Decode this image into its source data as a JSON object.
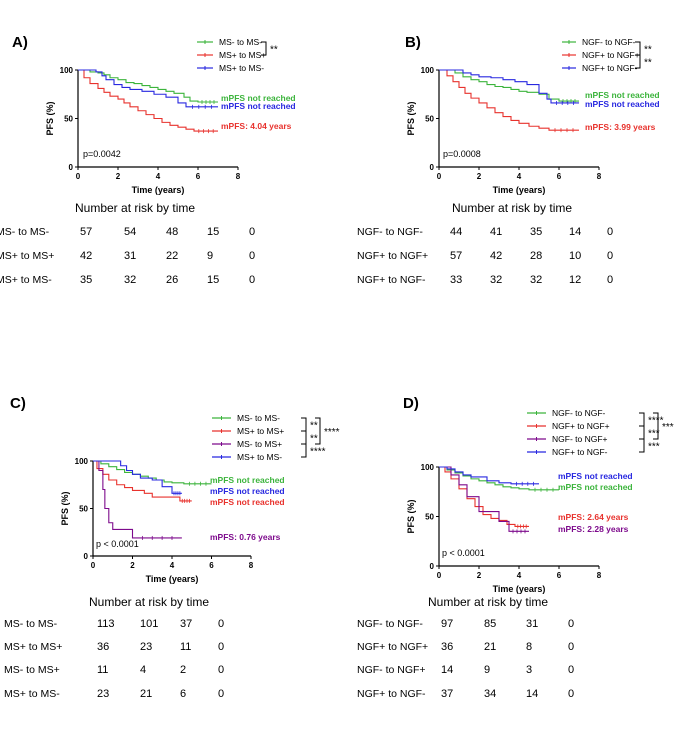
{
  "colors": {
    "green": "#3cb43c",
    "red": "#e8322d",
    "blue": "#2828e0",
    "purple": "#7d0a8c",
    "black": "#000000"
  },
  "chart_data": [
    {
      "id": "A",
      "type": "line",
      "title": "A)",
      "xlabel": "Time (years)",
      "ylabel": "PFS  (%)",
      "xlim": [
        0,
        8
      ],
      "ylim": [
        0,
        100
      ],
      "xticks": [
        0,
        2,
        4,
        6,
        8
      ],
      "yticks": [
        0,
        50,
        100
      ],
      "pvalue": "p=0.0042",
      "legend": [
        {
          "label": "MS- to MS-",
          "color": "green"
        },
        {
          "label": "MS+ to MS+",
          "color": "red"
        },
        {
          "label": "MS+ to MS-",
          "color": "blue"
        }
      ],
      "brackets": [
        {
          "from": 0,
          "to": 1,
          "label": "**"
        }
      ],
      "series": [
        {
          "name": "MS- to MS-",
          "color": "green",
          "x": [
            0,
            0.6,
            1.0,
            1.3,
            1.6,
            2.0,
            2.4,
            2.8,
            3.2,
            3.6,
            4.0,
            4.4,
            4.8,
            5.3,
            5.6,
            6.0,
            7.0
          ],
          "y": [
            100,
            98,
            97,
            95,
            92,
            90,
            87,
            86,
            84,
            82,
            80,
            78,
            76,
            72,
            68,
            67,
            67
          ]
        },
        {
          "name": "MS+ to MS+",
          "color": "red",
          "x": [
            0,
            0.3,
            0.6,
            1.0,
            1.3,
            1.6,
            2.0,
            2.3,
            2.6,
            3.0,
            3.4,
            3.8,
            4.2,
            4.6,
            5.0,
            5.4,
            5.8,
            7.0
          ],
          "y": [
            100,
            92,
            86,
            81,
            77,
            73,
            70,
            66,
            62,
            58,
            54,
            50,
            46,
            43,
            41,
            39,
            37,
            37
          ]
        },
        {
          "name": "MS+ to MS-",
          "color": "blue",
          "x": [
            0,
            0.9,
            1.2,
            1.4,
            1.8,
            2.2,
            2.6,
            3.2,
            3.8,
            4.4,
            5.0,
            5.4,
            7.0
          ],
          "y": [
            100,
            98,
            94,
            90,
            85,
            82,
            80,
            78,
            75,
            72,
            66,
            62,
            62
          ]
        }
      ],
      "annotations": [
        {
          "text": "mPFS not reached",
          "color": "green"
        },
        {
          "text": "mPFS not reached",
          "color": "blue"
        },
        {
          "text": "mPFS: 4.04 years",
          "color": "red"
        }
      ],
      "risk": {
        "title": "Number at risk by time",
        "rows": [
          {
            "label": "MS- to MS-",
            "values": [
              "57",
              "54",
              "48",
              "15",
              "0"
            ]
          },
          {
            "label": "MS+ to MS+",
            "values": [
              "42",
              "31",
              "22",
              "9",
              "0"
            ]
          },
          {
            "label": "MS+ to MS-",
            "values": [
              "35",
              "32",
              "26",
              "15",
              "0"
            ]
          }
        ]
      }
    },
    {
      "id": "B",
      "type": "line",
      "title": "B)",
      "xlabel": "Time (years)",
      "ylabel": "PFS  (%)",
      "xlim": [
        0,
        8
      ],
      "ylim": [
        0,
        100
      ],
      "xticks": [
        0,
        2,
        4,
        6,
        8
      ],
      "yticks": [
        0,
        50,
        100
      ],
      "pvalue": "p=0.0008",
      "legend": [
        {
          "label": "NGF- to NGF-",
          "color": "green"
        },
        {
          "label": "NGF+ to NGF+",
          "color": "red"
        },
        {
          "label": "NGF+ to NGF-",
          "color": "blue"
        }
      ],
      "brackets": [
        {
          "from": 0,
          "to": 1,
          "label": "**"
        },
        {
          "from": 1,
          "to": 2,
          "label": "**"
        }
      ],
      "series": [
        {
          "name": "NGF- to NGF-",
          "color": "green",
          "x": [
            0,
            0.8,
            1.2,
            1.6,
            2.0,
            2.4,
            2.8,
            3.2,
            3.6,
            4.0,
            4.4,
            5.0,
            5.5,
            6.0,
            7.0
          ],
          "y": [
            100,
            97,
            93,
            90,
            88,
            85,
            83,
            82,
            80,
            78,
            77,
            75,
            70,
            68,
            68
          ]
        },
        {
          "name": "NGF+ to NGF+",
          "color": "red",
          "x": [
            0,
            0.4,
            0.7,
            1.0,
            1.3,
            1.6,
            2.0,
            2.4,
            2.8,
            3.2,
            3.6,
            4.0,
            4.5,
            5.0,
            5.5,
            7.0
          ],
          "y": [
            100,
            94,
            88,
            82,
            76,
            71,
            66,
            61,
            56,
            52,
            48,
            45,
            42,
            40,
            38,
            38
          ]
        },
        {
          "name": "NGF+ to NGF-",
          "color": "blue",
          "x": [
            0,
            1.2,
            1.6,
            2.0,
            2.6,
            3.2,
            3.8,
            4.4,
            5.0,
            5.4,
            5.6,
            7.0
          ],
          "y": [
            100,
            97,
            95,
            93,
            92,
            90,
            88,
            85,
            76,
            70,
            66,
            66
          ]
        }
      ],
      "annotations": [
        {
          "text": "mPFS not reached",
          "color": "green"
        },
        {
          "text": "mPFS not reached",
          "color": "blue"
        },
        {
          "text": "mPFS: 3.99 years",
          "color": "red"
        }
      ],
      "risk": {
        "title": "Number at risk by time",
        "rows": [
          {
            "label": "NGF- to NGF-",
            "values": [
              "44",
              "41",
              "35",
              "14",
              "0"
            ]
          },
          {
            "label": "NGF+ to NGF+",
            "values": [
              "57",
              "42",
              "28",
              "10",
              "0"
            ]
          },
          {
            "label": "NGF+ to NGF-",
            "values": [
              "33",
              "32",
              "32",
              "12",
              "0"
            ]
          }
        ]
      }
    },
    {
      "id": "C",
      "type": "line",
      "title": "C)",
      "xlabel": "Time (years)",
      "ylabel": "PFS (%)",
      "xlim": [
        0,
        8
      ],
      "ylim": [
        0,
        100
      ],
      "xticks": [
        0,
        2,
        4,
        6,
        8
      ],
      "yticks": [
        0,
        50,
        100
      ],
      "pvalue": "p < 0.0001",
      "legend": [
        {
          "label": "MS- to MS-",
          "color": "green"
        },
        {
          "label": "MS+ to MS+",
          "color": "red"
        },
        {
          "label": "MS- to MS+",
          "color": "purple"
        },
        {
          "label": "MS+ to MS-",
          "color": "blue"
        }
      ],
      "brackets": [
        {
          "from": 0,
          "to": 1,
          "label": "**"
        },
        {
          "from": 1,
          "to": 2,
          "label": "**"
        },
        {
          "from": 0,
          "to": 2,
          "label": "****"
        },
        {
          "from": 2,
          "to": 3,
          "label": "****"
        }
      ],
      "series": [
        {
          "name": "MS- to MS-",
          "color": "green",
          "x": [
            0,
            0.4,
            0.8,
            1.2,
            1.6,
            2.0,
            2.4,
            2.8,
            3.2,
            3.6,
            4.0,
            4.6,
            6.0
          ],
          "y": [
            100,
            97,
            94,
            91,
            88,
            86,
            84,
            82,
            80,
            78,
            77,
            76,
            76
          ]
        },
        {
          "name": "MS+ to MS+",
          "color": "red",
          "x": [
            0,
            0.2,
            0.5,
            0.8,
            1.2,
            1.6,
            2.0,
            2.6,
            3.0,
            4.4,
            5.0
          ],
          "y": [
            100,
            92,
            86,
            80,
            75,
            72,
            69,
            66,
            62,
            58,
            58
          ]
        },
        {
          "name": "MS- to MS+",
          "color": "purple",
          "x": [
            0,
            0.3,
            0.5,
            0.6,
            0.8,
            1.0,
            2.0,
            4.5
          ],
          "y": [
            100,
            90,
            70,
            50,
            35,
            28,
            19,
            19
          ]
        },
        {
          "name": "MS+ to MS-",
          "color": "blue",
          "x": [
            0,
            1.4,
            1.7,
            2.0,
            2.4,
            3.0,
            3.5,
            4.0,
            4.5
          ],
          "y": [
            100,
            95,
            90,
            86,
            82,
            80,
            73,
            66,
            66
          ]
        }
      ],
      "annotations": [
        {
          "text": "mPFS not reached",
          "color": "green"
        },
        {
          "text": "mPFS not reached",
          "color": "blue"
        },
        {
          "text": "mPFS not reached",
          "color": "red"
        },
        {
          "text": "mPFS: 0.76 years",
          "color": "purple"
        }
      ],
      "risk": {
        "title": "Number at risk by time",
        "rows": [
          {
            "label": "MS- to MS-",
            "values": [
              "113",
              "101",
              "37",
              "0"
            ]
          },
          {
            "label": "MS+ to MS+",
            "values": [
              "36",
              "23",
              "11",
              "0"
            ]
          },
          {
            "label": "MS- to MS+",
            "values": [
              "11",
              "4",
              "2",
              "0"
            ]
          },
          {
            "label": "MS+ to MS-",
            "values": [
              "23",
              "21",
              "6",
              "0"
            ]
          }
        ]
      }
    },
    {
      "id": "D",
      "type": "line",
      "title": "D)",
      "xlabel": "Time (years)",
      "ylabel": "PFS (%)",
      "xlim": [
        0,
        8
      ],
      "ylim": [
        0,
        100
      ],
      "xticks": [
        0,
        2,
        4,
        6,
        8
      ],
      "yticks": [
        0,
        50,
        100
      ],
      "pvalue": "p < 0.0001",
      "legend": [
        {
          "label": "NGF- to NGF-",
          "color": "green"
        },
        {
          "label": "NGF+ to NGF+",
          "color": "red"
        },
        {
          "label": "NGF- to NGF+",
          "color": "purple"
        },
        {
          "label": "NGF+ to NGF-",
          "color": "blue"
        }
      ],
      "brackets": [
        {
          "from": 0,
          "to": 1,
          "label": "****"
        },
        {
          "from": 2,
          "to": 3,
          "label": "***"
        },
        {
          "from": 1,
          "to": 2,
          "label": "***"
        },
        {
          "from": 0,
          "to": 2,
          "label": "***"
        }
      ],
      "series": [
        {
          "name": "NGF- to NGF-",
          "color": "green",
          "x": [
            0,
            0.4,
            0.8,
            1.2,
            1.6,
            2.0,
            2.4,
            2.8,
            3.2,
            3.6,
            4.0,
            4.5,
            6.0
          ],
          "y": [
            100,
            97,
            94,
            91,
            88,
            86,
            84,
            82,
            80,
            79,
            78,
            77,
            77
          ]
        },
        {
          "name": "NGF+ to NGF+",
          "color": "red",
          "x": [
            0,
            0.3,
            0.6,
            1.0,
            1.4,
            1.8,
            2.2,
            2.6,
            3.0,
            3.4,
            3.8,
            4.5
          ],
          "y": [
            100,
            95,
            88,
            78,
            68,
            60,
            52,
            48,
            46,
            42,
            40,
            40
          ]
        },
        {
          "name": "NGF- to NGF+",
          "color": "purple",
          "x": [
            0,
            0.6,
            1.0,
            1.4,
            2.0,
            3.0,
            3.5,
            4.5
          ],
          "y": [
            100,
            92,
            82,
            70,
            55,
            45,
            35,
            35
          ]
        },
        {
          "name": "NGF+ to NGF-",
          "color": "blue",
          "x": [
            0,
            0.4,
            0.8,
            1.2,
            1.6,
            2.4,
            3.0,
            3.6,
            5.0
          ],
          "y": [
            100,
            98,
            95,
            92,
            90,
            86,
            84,
            83,
            83
          ]
        }
      ],
      "annotations": [
        {
          "text": "mPFS not reached",
          "color": "blue"
        },
        {
          "text": "mPFS not reached",
          "color": "green"
        },
        {
          "text": "mPFS: 2.64 years",
          "color": "red"
        },
        {
          "text": "mPFS: 2.28 years",
          "color": "purple"
        }
      ],
      "risk": {
        "title": "Number at risk by time",
        "rows": [
          {
            "label": "NGF- to NGF-",
            "values": [
              "97",
              "85",
              "31",
              "0"
            ]
          },
          {
            "label": "NGF+ to NGF+",
            "values": [
              "36",
              "21",
              "8",
              "0"
            ]
          },
          {
            "label": "NGF- to NGF+",
            "values": [
              "14",
              "9",
              "3",
              "0"
            ]
          },
          {
            "label": "NGF+ to NGF-",
            "values": [
              "37",
              "34",
              "14",
              "0"
            ]
          }
        ]
      }
    }
  ]
}
